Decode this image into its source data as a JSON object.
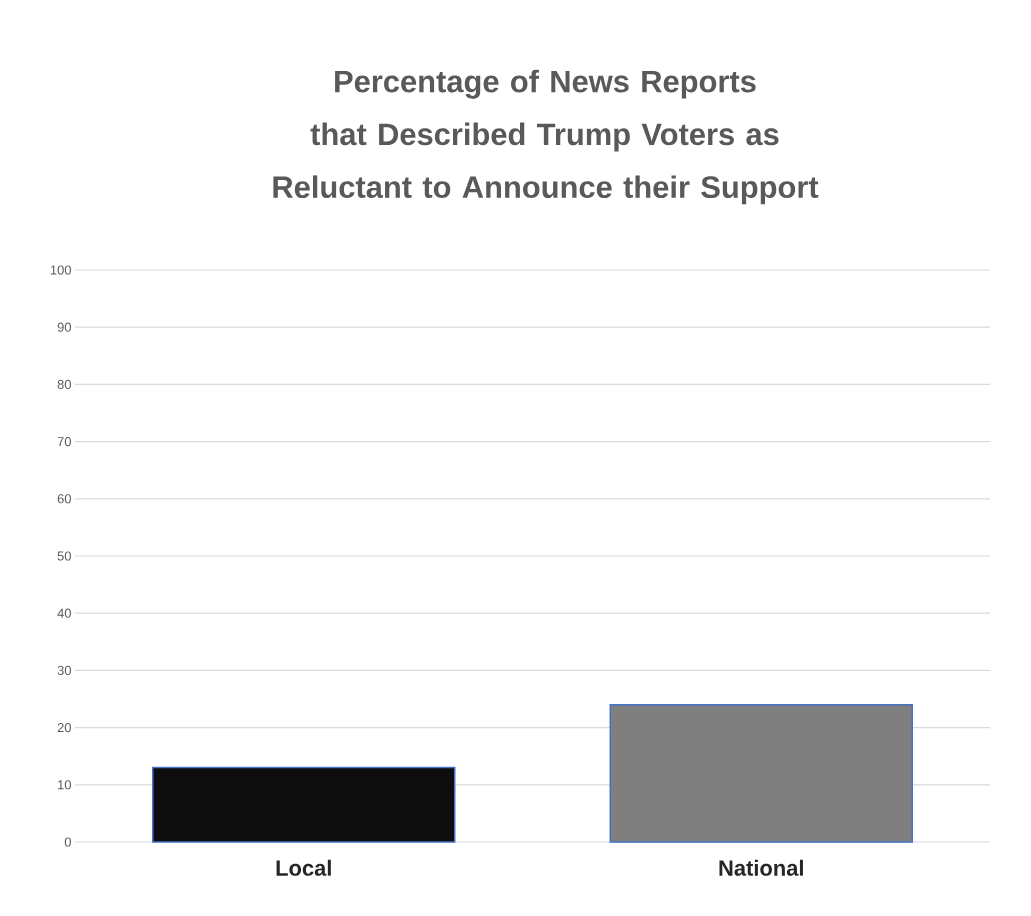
{
  "chart_data": {
    "type": "bar",
    "title": "Percentage of News Reports that Described Trump Voters as Reluctant to Announce their Support",
    "categories": [
      "Local",
      "National"
    ],
    "values": [
      13,
      24
    ],
    "colors": [
      "#0d0d0d",
      "#7f7f7f"
    ],
    "ylim": [
      0,
      100
    ],
    "yticks": [
      0,
      10,
      20,
      30,
      40,
      50,
      60,
      70,
      80,
      90,
      100
    ],
    "grid": "y"
  }
}
